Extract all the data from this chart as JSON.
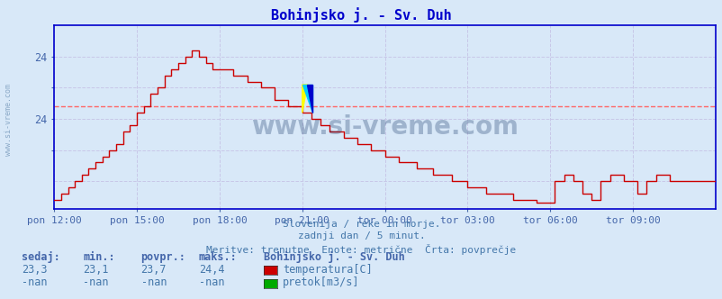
{
  "title": "Bohinjsko j. - Sv. Duh",
  "title_color": "#0000cc",
  "bg_color": "#d8e8f8",
  "plot_bg_color": "#d8e8f8",
  "grid_color": "#c8c8e8",
  "line_color": "#cc0000",
  "avg_line_color": "#ff6666",
  "axis_color": "#0000cc",
  "tick_color": "#4466aa",
  "text_color": "#4477aa",
  "watermark": "www.si-vreme.com",
  "watermark_color": "#1a3a6a",
  "footer_line1": "Slovenija / reke in morje.",
  "footer_line2": "zadnji dan / 5 minut.",
  "footer_line3": "Meritve: trenutne  Enote: metrične  Črta: povprečje",
  "label_sedaj": "sedaj:",
  "label_min": "min.:",
  "label_povpr": "povpr.:",
  "label_maks": "maks.:",
  "val_sedaj": "23,3",
  "val_min": "23,1",
  "val_povpr": "23,7",
  "val_maks": "24,4",
  "station_label": "Bohinjsko j. - Sv. Duh",
  "leg_temp": "temperatura[C]",
  "leg_pretok": "pretok[m3/s]",
  "leg_temp_color": "#cc0000",
  "leg_pretok_color": "#00aa00",
  "xlabel_ticks": [
    "pon 12:00",
    "pon 15:00",
    "pon 18:00",
    "pon 21:00",
    "tor 00:00",
    "tor 03:00",
    "tor 06:00",
    "tor 09:00"
  ],
  "xtick_positions": [
    0,
    36,
    72,
    108,
    144,
    180,
    216,
    252
  ],
  "ylim": [
    22.05,
    25.0
  ],
  "avg_value": 23.7,
  "ytick_positions": [
    23.0,
    23.5,
    24.0,
    24.5
  ],
  "ytick_labels": [
    "",
    "24",
    "",
    "24"
  ]
}
